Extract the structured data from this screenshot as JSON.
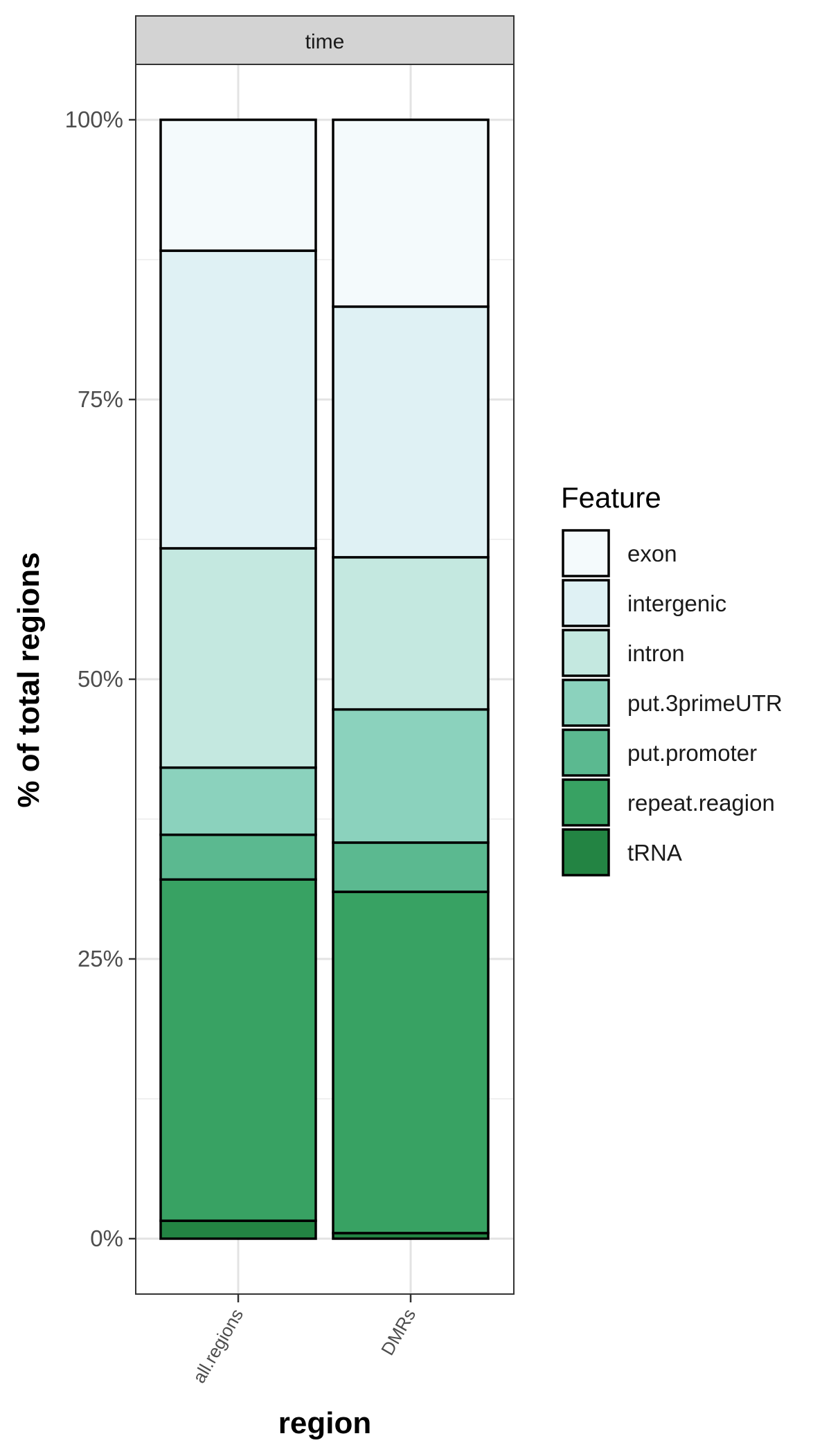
{
  "chart_data": {
    "type": "bar",
    "stacked": true,
    "percent": true,
    "facet_label": "time",
    "categories": [
      "all.regions",
      "DMRs"
    ],
    "xlabel": "region",
    "ylabel": "% of total regions",
    "ylim": [
      0,
      100
    ],
    "y_ticks": [
      0,
      25,
      50,
      75,
      100
    ],
    "y_tick_labels": [
      "0%",
      "25%",
      "50%",
      "75%",
      "100%"
    ],
    "grid": true,
    "legend": {
      "title": "Feature",
      "position": "right"
    },
    "series": [
      {
        "name": "tRNA",
        "color": "#238443",
        "values": [
          1.6,
          0.5
        ]
      },
      {
        "name": "repeat.reagion",
        "color": "#38a263",
        "values": [
          30.5,
          30.5
        ]
      },
      {
        "name": "put.promoter",
        "color": "#5bb990",
        "values": [
          4.0,
          4.4
        ]
      },
      {
        "name": "put.3primeUTR",
        "color": "#8bd2bd",
        "values": [
          6.0,
          11.9
        ]
      },
      {
        "name": "intron",
        "color": "#c4e8e0",
        "values": [
          19.6,
          13.6
        ]
      },
      {
        "name": "intergenic",
        "color": "#dff1f4",
        "values": [
          26.6,
          22.4
        ]
      },
      {
        "name": "exon",
        "color": "#f4fafc",
        "values": [
          11.7,
          16.7
        ]
      }
    ],
    "legend_order": [
      "exon",
      "intergenic",
      "intron",
      "put.3primeUTR",
      "put.promoter",
      "repeat.reagion",
      "tRNA"
    ]
  }
}
